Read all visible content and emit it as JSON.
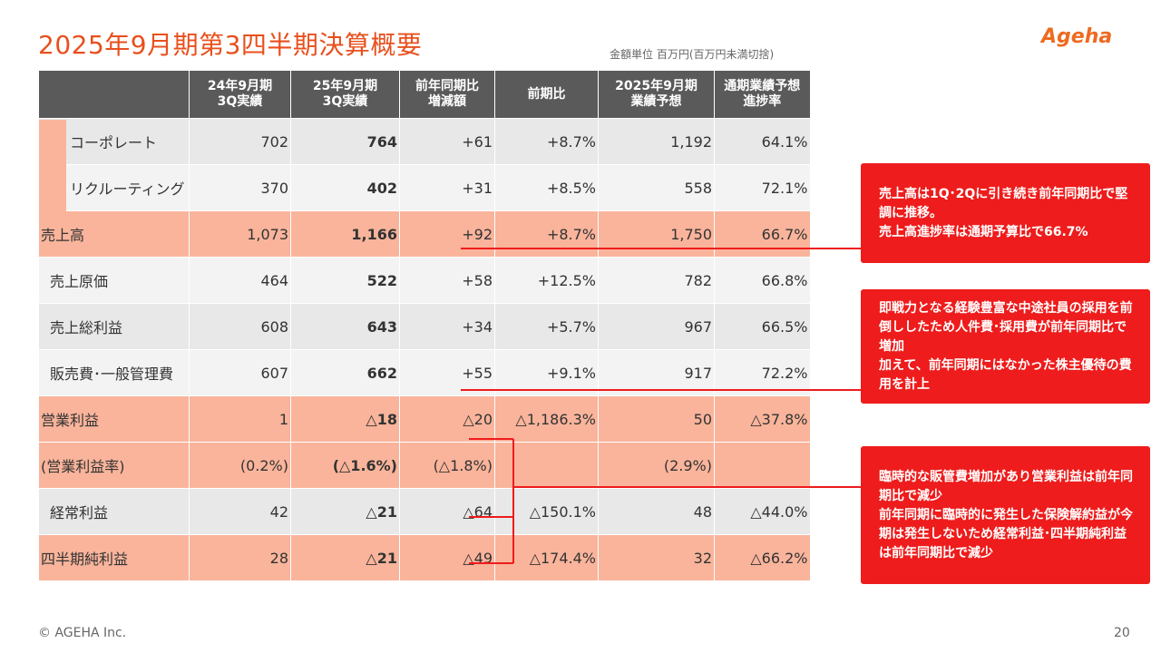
{
  "header": {
    "title": "2025年9月期第3四半期決算概要",
    "unit_note": "金額単位 百万円(百万円未満切捨)",
    "logo_text": "Ageha"
  },
  "table": {
    "columns": [
      "",
      "24年9月期\n3Q実績",
      "25年9月期\n3Q実績",
      "前年同期比\n増減額",
      "前期比",
      "2025年9月期\n業績予想",
      "通期業績予想\n進捗率"
    ],
    "rows": [
      {
        "label": "コーポレート",
        "prev": "702",
        "curr": "764",
        "diff": "+61",
        "ratio": "+8.7%",
        "forecast": "1,192",
        "progress": "64.1%"
      },
      {
        "label": "リクルーティング",
        "prev": "370",
        "curr": "402",
        "diff": "+31",
        "ratio": "+8.5%",
        "forecast": "558",
        "progress": "72.1%"
      },
      {
        "label": "売上高",
        "prev": "1,073",
        "curr": "1,166",
        "diff": "+92",
        "ratio": "+8.7%",
        "forecast": "1,750",
        "progress": "66.7%"
      },
      {
        "label": "売上原価",
        "prev": "464",
        "curr": "522",
        "diff": "+58",
        "ratio": "+12.5%",
        "forecast": "782",
        "progress": "66.8%"
      },
      {
        "label": "売上総利益",
        "prev": "608",
        "curr": "643",
        "diff": "+34",
        "ratio": "+5.7%",
        "forecast": "967",
        "progress": "66.5%"
      },
      {
        "label": "販売費･一般管理費",
        "prev": "607",
        "curr": "662",
        "diff": "+55",
        "ratio": "+9.1%",
        "forecast": "917",
        "progress": "72.2%"
      },
      {
        "label": "営業利益",
        "prev": "1",
        "curr": "△18",
        "diff": "△20",
        "ratio": "△1,186.3%",
        "forecast": "50",
        "progress": "△37.8%"
      },
      {
        "label": "(営業利益率)",
        "prev": "(0.2%)",
        "curr": "(△1.6%)",
        "diff": "(△1.8%)",
        "ratio": "",
        "forecast": "(2.9%)",
        "progress": ""
      },
      {
        "label": "経常利益",
        "prev": "42",
        "curr": "△21",
        "diff": "△64",
        "ratio": "△150.1%",
        "forecast": "48",
        "progress": "△44.0%"
      },
      {
        "label": "四半期純利益",
        "prev": "28",
        "curr": "△21",
        "diff": "△49",
        "ratio": "△174.4%",
        "forecast": "32",
        "progress": "△66.2%"
      }
    ]
  },
  "callouts": [
    "売上高は1Q･2Qに引き続き前年同期比で堅調に推移。\n売上高進捗率は通期予算比で66.7%",
    "即戦力となる経験豊富な中途社員の採用を前倒ししたため人件費･採用費が前年同期比で増加\n加えて、前年同期にはなかった株主優待の費用を計上",
    "臨時的な販管費増加があり営業利益は前年同期比で減少\n前年同期に臨時的に発生した保険解約益が今期は発生しないため経常利益･四半期純利益は前年同期比で減少"
  ],
  "footer": {
    "copyright": "© AGEHA Inc.",
    "page_number": "20"
  },
  "colors": {
    "accent": "#e8501e",
    "header_bg": "#5a5a5a",
    "highlight_row": "#f9b49b",
    "callout_bg": "#ee1c1c"
  }
}
